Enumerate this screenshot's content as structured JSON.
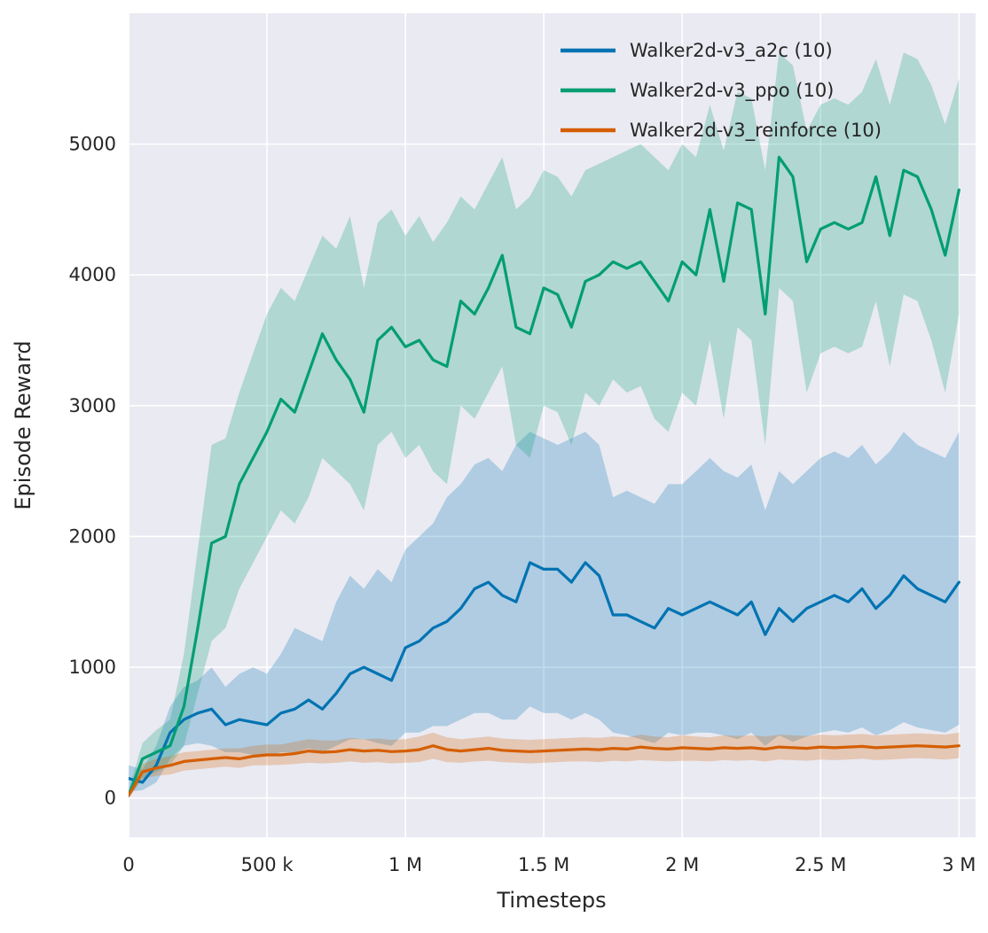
{
  "chart_data": {
    "type": "line",
    "title": "",
    "xlabel": "Timesteps",
    "ylabel": "Episode Reward",
    "xlim": [
      0,
      3060000
    ],
    "ylim": [
      -300,
      6000
    ],
    "grid": true,
    "legend_position": "upper right",
    "plot_bg": "#eaeaf2",
    "grid_color": "#ffffff",
    "text_color": "#262626",
    "band_opacity": 0.25,
    "xticks": [
      {
        "value": 0,
        "label": "0"
      },
      {
        "value": 500000,
        "label": "500 k"
      },
      {
        "value": 1000000,
        "label": "1 M"
      },
      {
        "value": 1500000,
        "label": "1.5 M"
      },
      {
        "value": 2000000,
        "label": "2 M"
      },
      {
        "value": 2500000,
        "label": "2.5 M"
      },
      {
        "value": 3000000,
        "label": "3 M"
      }
    ],
    "yticks": [
      {
        "value": 0,
        "label": "0"
      },
      {
        "value": 1000,
        "label": "1000"
      },
      {
        "value": 2000,
        "label": "2000"
      },
      {
        "value": 3000,
        "label": "3000"
      },
      {
        "value": 4000,
        "label": "4000"
      },
      {
        "value": 5000,
        "label": "5000"
      }
    ],
    "x": [
      0,
      50000,
      100000,
      150000,
      200000,
      250000,
      300000,
      350000,
      400000,
      450000,
      500000,
      550000,
      600000,
      650000,
      700000,
      750000,
      800000,
      850000,
      900000,
      950000,
      1000000,
      1050000,
      1100000,
      1150000,
      1200000,
      1250000,
      1300000,
      1350000,
      1400000,
      1450000,
      1500000,
      1550000,
      1600000,
      1650000,
      1700000,
      1750000,
      1800000,
      1850000,
      1900000,
      1950000,
      2000000,
      2050000,
      2100000,
      2150000,
      2200000,
      2250000,
      2300000,
      2350000,
      2400000,
      2450000,
      2500000,
      2550000,
      2600000,
      2650000,
      2700000,
      2750000,
      2800000,
      2850000,
      2900000,
      2950000,
      3000000
    ],
    "series": [
      {
        "name": "Walker2d-v3_a2c (10)",
        "color": "#0173b2",
        "mean": [
          150,
          120,
          250,
          500,
          600,
          650,
          680,
          560,
          600,
          580,
          560,
          650,
          680,
          750,
          680,
          800,
          950,
          1000,
          950,
          900,
          1150,
          1200,
          1300,
          1350,
          1450,
          1600,
          1650,
          1550,
          1500,
          1800,
          1750,
          1750,
          1650,
          1800,
          1700,
          1400,
          1400,
          1350,
          1300,
          1450,
          1400,
          1450,
          1500,
          1450,
          1400,
          1500,
          1250,
          1450,
          1350,
          1450,
          1500,
          1550,
          1500,
          1600,
          1450,
          1550,
          1700,
          1600,
          1550,
          1500,
          1650
        ],
        "low": [
          50,
          60,
          120,
          300,
          400,
          420,
          400,
          350,
          350,
          330,
          320,
          350,
          350,
          380,
          350,
          400,
          450,
          450,
          420,
          400,
          500,
          500,
          550,
          550,
          600,
          650,
          650,
          600,
          600,
          700,
          650,
          650,
          600,
          650,
          600,
          500,
          480,
          450,
          420,
          500,
          480,
          500,
          500,
          480,
          450,
          500,
          400,
          480,
          430,
          470,
          500,
          520,
          500,
          540,
          480,
          520,
          580,
          540,
          520,
          500,
          560
        ],
        "high": [
          250,
          220,
          400,
          700,
          850,
          900,
          1000,
          850,
          950,
          1000,
          950,
          1100,
          1300,
          1250,
          1200,
          1500,
          1700,
          1600,
          1750,
          1650,
          1900,
          2000,
          2100,
          2300,
          2400,
          2550,
          2600,
          2500,
          2700,
          2800,
          2750,
          2700,
          2750,
          2800,
          2700,
          2300,
          2350,
          2300,
          2250,
          2400,
          2400,
          2500,
          2600,
          2500,
          2450,
          2550,
          2200,
          2500,
          2400,
          2500,
          2600,
          2650,
          2600,
          2700,
          2550,
          2650,
          2800,
          2700,
          2650,
          2600,
          2800
        ]
      },
      {
        "name": "Walker2d-v3_ppo (10)",
        "color": "#029e73",
        "mean": [
          20,
          300,
          350,
          400,
          700,
          1300,
          1950,
          2000,
          2400,
          2600,
          2800,
          3050,
          2950,
          3250,
          3550,
          3350,
          3200,
          2950,
          3500,
          3600,
          3450,
          3500,
          3350,
          3300,
          3800,
          3700,
          3900,
          4150,
          3600,
          3550,
          3900,
          3850,
          3600,
          3950,
          4000,
          4100,
          4050,
          4100,
          3950,
          3800,
          4100,
          4000,
          4500,
          3950,
          4550,
          4500,
          3700,
          4900,
          4750,
          4100,
          4350,
          4400,
          4350,
          4400,
          4750,
          4300,
          4800,
          4750,
          4500,
          4150,
          4650
        ],
        "low": [
          0,
          150,
          200,
          250,
          400,
          800,
          1200,
          1300,
          1600,
          1800,
          2000,
          2200,
          2100,
          2300,
          2600,
          2500,
          2400,
          2200,
          2700,
          2800,
          2600,
          2700,
          2500,
          2400,
          3000,
          2900,
          3100,
          3300,
          2700,
          2600,
          3000,
          2950,
          2700,
          3100,
          3000,
          3200,
          3100,
          3150,
          2900,
          2800,
          3100,
          3000,
          3500,
          2900,
          3600,
          3500,
          2700,
          3900,
          3800,
          3100,
          3400,
          3450,
          3400,
          3450,
          3800,
          3300,
          3850,
          3800,
          3500,
          3100,
          3700
        ],
        "high": [
          60,
          420,
          520,
          600,
          1100,
          1900,
          2700,
          2750,
          3100,
          3400,
          3700,
          3900,
          3800,
          4050,
          4300,
          4200,
          4450,
          3900,
          4400,
          4500,
          4300,
          4450,
          4250,
          4400,
          4600,
          4500,
          4700,
          4900,
          4500,
          4600,
          4800,
          4750,
          4600,
          4800,
          4850,
          4900,
          4950,
          5000,
          4900,
          4800,
          5000,
          4900,
          5300,
          4950,
          5400,
          5350,
          4800,
          5700,
          5600,
          5100,
          5300,
          5350,
          5300,
          5400,
          5650,
          5300,
          5700,
          5650,
          5450,
          5150,
          5500
        ]
      },
      {
        "name": "Walker2d-v3_reinforce (10)",
        "color": "#d55e00",
        "mean": [
          20,
          200,
          230,
          250,
          280,
          290,
          300,
          310,
          300,
          320,
          330,
          330,
          340,
          360,
          350,
          355,
          370,
          360,
          365,
          355,
          360,
          370,
          400,
          370,
          360,
          370,
          380,
          365,
          360,
          355,
          360,
          365,
          370,
          375,
          370,
          380,
          375,
          390,
          380,
          375,
          385,
          380,
          375,
          385,
          380,
          385,
          375,
          390,
          385,
          380,
          390,
          385,
          390,
          395,
          385,
          390,
          395,
          400,
          395,
          390,
          400
        ],
        "low": [
          0,
          150,
          170,
          180,
          210,
          220,
          230,
          240,
          230,
          250,
          250,
          255,
          260,
          270,
          265,
          270,
          280,
          270,
          275,
          265,
          270,
          275,
          300,
          275,
          270,
          280,
          285,
          275,
          270,
          265,
          270,
          275,
          280,
          280,
          275,
          285,
          280,
          290,
          285,
          280,
          285,
          285,
          280,
          290,
          285,
          290,
          280,
          295,
          290,
          285,
          295,
          290,
          295,
          300,
          290,
          295,
          300,
          305,
          300,
          295,
          305
        ],
        "high": [
          60,
          260,
          300,
          320,
          350,
          360,
          370,
          380,
          380,
          400,
          410,
          410,
          430,
          450,
          440,
          440,
          460,
          450,
          455,
          445,
          450,
          470,
          500,
          465,
          450,
          460,
          470,
          455,
          450,
          445,
          450,
          455,
          460,
          465,
          460,
          470,
          465,
          485,
          470,
          465,
          480,
          470,
          465,
          480,
          475,
          480,
          470,
          485,
          480,
          475,
          485,
          480,
          485,
          490,
          480,
          485,
          490,
          495,
          490,
          485,
          500
        ]
      }
    ]
  }
}
